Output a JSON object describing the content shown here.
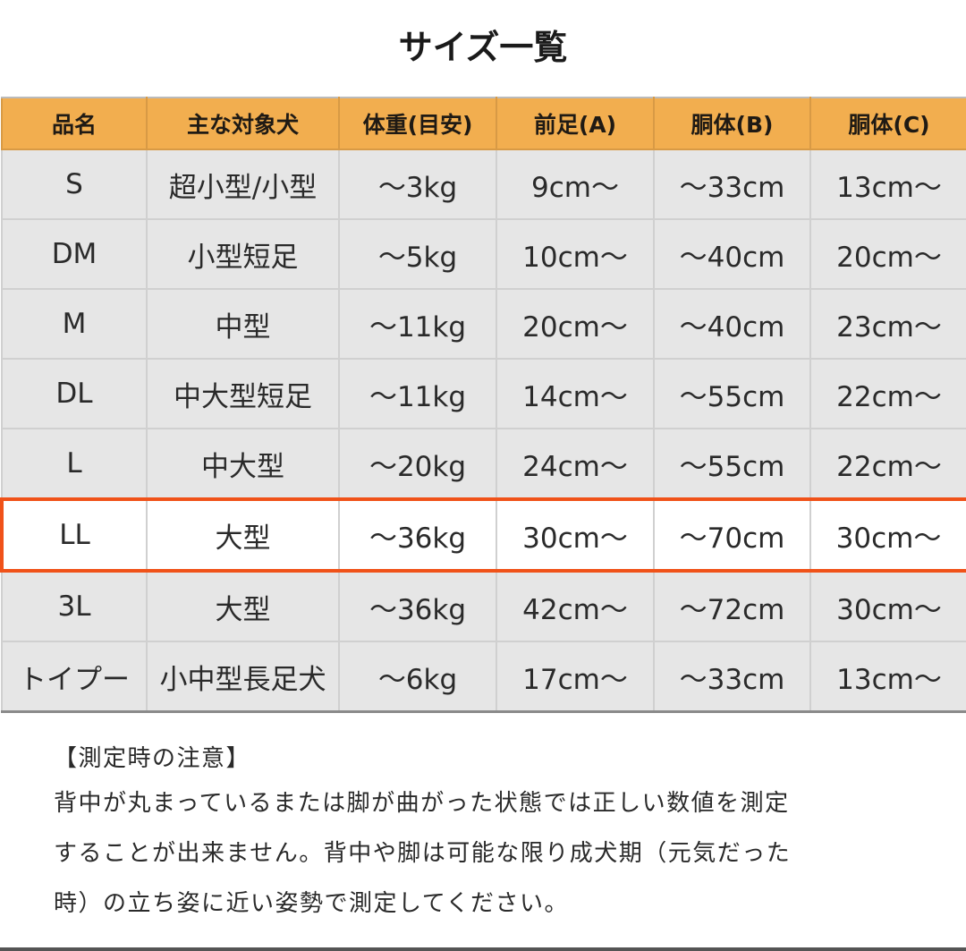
{
  "title": "サイズ一覧",
  "table": {
    "headers": [
      "品名",
      "主な対象犬",
      "体重(目安)",
      "前足(A)",
      "胴体(B)",
      "胴体(C)"
    ],
    "rows": [
      [
        "S",
        "超小型/小型",
        "〜3kg",
        "9cm〜",
        "〜33cm",
        "13cm〜"
      ],
      [
        "DM",
        "小型短足",
        "〜5kg",
        "10cm〜",
        "〜40cm",
        "20cm〜"
      ],
      [
        "M",
        "中型",
        "〜11kg",
        "20cm〜",
        "〜40cm",
        "23cm〜"
      ],
      [
        "DL",
        "中大型短足",
        "〜11kg",
        "14cm〜",
        "〜55cm",
        "22cm〜"
      ],
      [
        "L",
        "中大型",
        "〜20kg",
        "24cm〜",
        "〜55cm",
        "22cm〜"
      ],
      [
        "LL",
        "大型",
        "〜36kg",
        "30cm〜",
        "〜70cm",
        "30cm〜"
      ],
      [
        "3L",
        "大型",
        "〜36kg",
        "42cm〜",
        "〜72cm",
        "30cm〜"
      ],
      [
        "トイプー",
        "小中型長足犬",
        "〜6kg",
        "17cm〜",
        "〜33cm",
        "13cm〜"
      ]
    ],
    "highlighted_row": "LL",
    "colors": {
      "header": "#f2ae4f",
      "row": "#e6e6e6",
      "highlight_border": "#f05219"
    }
  },
  "notes": {
    "heading": "【測定時の注意】",
    "lines": [
      "背中が丸まっているまたは脚が曲がった状態では正しい数値を測定",
      "することが出来ません。背中や脚は可能な限り成犬期（元気だった",
      "時）の立ち姿に近い姿勢で測定してください。"
    ]
  }
}
